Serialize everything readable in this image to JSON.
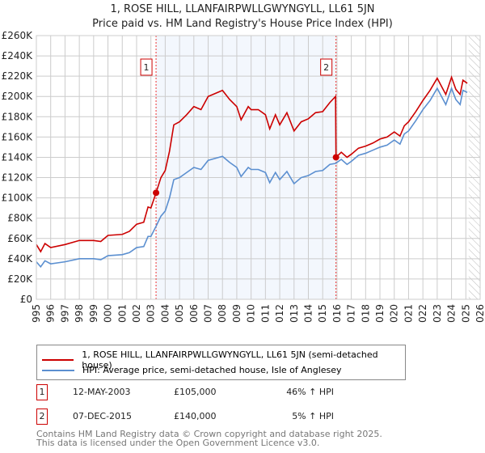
{
  "chart_data": {
    "type": "line",
    "title": "1, ROSE HILL, LLANFAIRPWLLGWYNGYLL, LL61 5JN",
    "subtitle": "Price paid vs. HM Land Registry's House Price Index (HPI)",
    "xlim": [
      1995,
      2026
    ],
    "ylim": [
      0,
      260000
    ],
    "x_ticks": [
      "1995",
      "1996",
      "1997",
      "1998",
      "1999",
      "2000",
      "2001",
      "2002",
      "2003",
      "2004",
      "2005",
      "2006",
      "2007",
      "2008",
      "2009",
      "2010",
      "2011",
      "2012",
      "2013",
      "2014",
      "2015",
      "2016",
      "2017",
      "2018",
      "2019",
      "2020",
      "2021",
      "2022",
      "2023",
      "2024",
      "2025",
      "2026"
    ],
    "y_ticks": [
      "£0",
      "£20K",
      "£40K",
      "£60K",
      "£80K",
      "£100K",
      "£120K",
      "£140K",
      "£160K",
      "£180K",
      "£200K",
      "£220K",
      "£240K",
      "£260K"
    ],
    "grid": true,
    "shaded_period": [
      2003.36,
      2015.93
    ],
    "future_hatch_from": 2025.2,
    "series": [
      {
        "name": "1, ROSE HILL, LLANFAIRPWLLGWYNGYLL, LL61 5JN (semi-detached house)",
        "color": "#cc0000",
        "x": [
          1995,
          1995.3,
          1995.6,
          1996,
          1997,
          1998,
          1999,
          1999.5,
          2000,
          2001,
          2001.5,
          2002,
          2002.5,
          2002.8,
          2003,
          2003.36,
          2003.7,
          2004,
          2004.3,
          2004.6,
          2005,
          2005.5,
          2006,
          2006.5,
          2007,
          2007.5,
          2008,
          2008.5,
          2009,
          2009.3,
          2009.8,
          2010,
          2010.5,
          2011,
          2011.3,
          2011.7,
          2012,
          2012.5,
          2013,
          2013.5,
          2014,
          2014.5,
          2015,
          2015.5,
          2015.9,
          2015.93,
          2016.3,
          2016.7,
          2017,
          2017.5,
          2018,
          2018.5,
          2019,
          2019.5,
          2020,
          2020.4,
          2020.7,
          2021,
          2021.5,
          2022,
          2022.5,
          2023,
          2023.3,
          2023.6,
          2024,
          2024.3,
          2024.6,
          2024.8,
          2025.1
        ],
        "y": [
          54000,
          47000,
          55000,
          51000,
          54000,
          58000,
          58000,
          57000,
          63000,
          64000,
          67000,
          74000,
          76000,
          91000,
          90000,
          105000,
          120000,
          127000,
          146000,
          172000,
          175000,
          182000,
          190000,
          187000,
          200000,
          203000,
          206000,
          197000,
          190000,
          177000,
          190000,
          187000,
          187000,
          182000,
          168000,
          182000,
          172000,
          184000,
          166000,
          175000,
          178000,
          184000,
          185000,
          194000,
          200000,
          140000,
          145000,
          140000,
          143000,
          149000,
          151000,
          154000,
          158000,
          160000,
          165000,
          161000,
          171000,
          175000,
          185000,
          196000,
          206000,
          218000,
          210000,
          202000,
          219000,
          207000,
          202000,
          216000,
          213000
        ]
      },
      {
        "name": "HPI: Average price, semi-detached house, Isle of Anglesey",
        "color": "#5b8fd0",
        "x": [
          1995,
          1995.3,
          1995.6,
          1996,
          1997,
          1998,
          1999,
          1999.5,
          2000,
          2001,
          2001.5,
          2002,
          2002.5,
          2002.8,
          2003,
          2003.36,
          2003.7,
          2004,
          2004.3,
          2004.6,
          2005,
          2005.5,
          2006,
          2006.5,
          2007,
          2007.5,
          2008,
          2008.5,
          2009,
          2009.3,
          2009.8,
          2010,
          2010.5,
          2011,
          2011.3,
          2011.7,
          2012,
          2012.5,
          2013,
          2013.5,
          2014,
          2014.5,
          2015,
          2015.5,
          2015.9,
          2016.3,
          2016.7,
          2017,
          2017.5,
          2018,
          2018.5,
          2019,
          2019.5,
          2020,
          2020.4,
          2020.7,
          2021,
          2021.5,
          2022,
          2022.5,
          2023,
          2023.3,
          2023.6,
          2024,
          2024.3,
          2024.6,
          2024.8,
          2025.1
        ],
        "y": [
          37000,
          32000,
          38000,
          35000,
          37000,
          40000,
          40000,
          39000,
          43000,
          44000,
          46000,
          51000,
          52000,
          62000,
          62000,
          72000,
          82000,
          87000,
          100000,
          118000,
          120000,
          125000,
          130000,
          128000,
          137000,
          139000,
          141000,
          135000,
          130000,
          121000,
          130000,
          128000,
          128000,
          125000,
          115000,
          125000,
          118000,
          126000,
          114000,
          120000,
          122000,
          126000,
          127000,
          133000,
          134000,
          138000,
          133000,
          136000,
          142000,
          144000,
          147000,
          150000,
          152000,
          157000,
          153000,
          163000,
          166000,
          176000,
          187000,
          196000,
          208000,
          200000,
          192000,
          208000,
          197000,
          192000,
          206000,
          204000
        ]
      }
    ],
    "sales": [
      {
        "label": "1",
        "x": 2003.36,
        "y": 105000
      },
      {
        "label": "2",
        "x": 2015.93,
        "y": 140000
      }
    ]
  },
  "table": [
    {
      "num": "1",
      "date": "12-MAY-2003",
      "price": "£105,000",
      "hpi": "46% ↑ HPI"
    },
    {
      "num": "2",
      "date": "07-DEC-2015",
      "price": "£140,000",
      "hpi": "5% ↑ HPI"
    }
  ],
  "footer": {
    "line1": "Contains HM Land Registry data © Crown copyright and database right 2025.",
    "line2": "This data is licensed under the Open Government Licence v3.0."
  }
}
